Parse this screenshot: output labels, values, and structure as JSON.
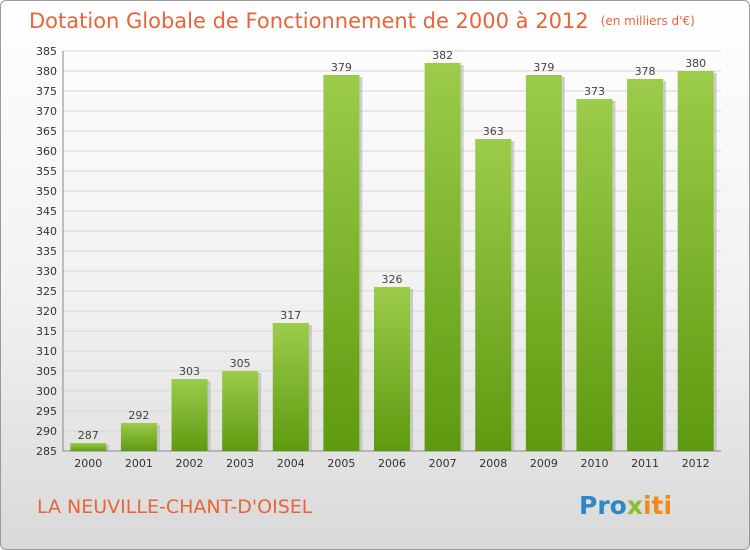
{
  "header": {
    "title": "Dotation Globale de Fonctionnement de 2000 à 2012",
    "subtitle": "(en milliers d'€)"
  },
  "footer": {
    "commune": "LA NEUVILLE-CHANT-D'OISEL",
    "logo_parts": [
      "Pro",
      "x",
      "iti"
    ]
  },
  "colors": {
    "title": "#e8643a",
    "bar_top": "#9ccc4a",
    "bar_bottom": "#5e9a10",
    "logo_blue": "#2f86c8",
    "logo_green": "#8bbf2c",
    "logo_orange": "#f08a1c"
  },
  "chart_data": {
    "type": "bar",
    "title": "Dotation Globale de Fonctionnement de 2000 à 2012",
    "subtitle": "(en milliers d'€)",
    "categories": [
      "2000",
      "2001",
      "2002",
      "2003",
      "2004",
      "2005",
      "2006",
      "2007",
      "2008",
      "2009",
      "2010",
      "2011",
      "2012"
    ],
    "values": [
      287,
      292,
      303,
      305,
      317,
      379,
      326,
      382,
      363,
      379,
      373,
      378,
      380
    ],
    "ylim": [
      285,
      385
    ],
    "ytick_step": 5,
    "grid": true,
    "xlabel": "",
    "ylabel": ""
  }
}
